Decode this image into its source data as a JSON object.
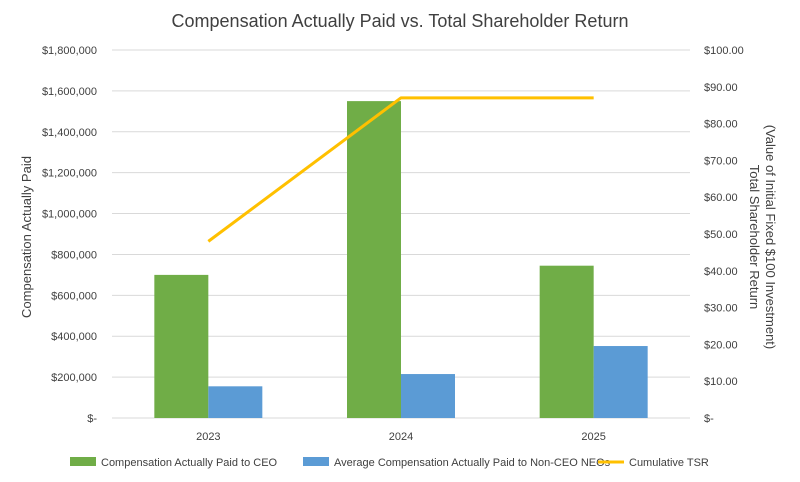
{
  "chart_data": {
    "type": "bar",
    "title": "Compensation Actually Paid vs. Total Shareholder Return",
    "categories": [
      "2023",
      "2024",
      "2025"
    ],
    "series": [
      {
        "name": "Compensation Actually Paid to CEO",
        "kind": "bar",
        "axis": "left",
        "color": "#70ad47",
        "values": [
          700000,
          1550000,
          745000
        ]
      },
      {
        "name": "Average Compensation Actually Paid to Non-CEO NEOs",
        "kind": "bar",
        "axis": "left",
        "color": "#5b9bd5",
        "values": [
          155000,
          215000,
          352000
        ]
      },
      {
        "name": "Cumulative TSR",
        "kind": "line",
        "axis": "right",
        "color": "#ffc000",
        "values": [
          48,
          87,
          87
        ]
      }
    ],
    "y_left": {
      "label": "Compensation Actually Paid",
      "range": [
        0,
        1800000
      ],
      "ticks": [
        0,
        200000,
        400000,
        600000,
        800000,
        1000000,
        1200000,
        1400000,
        1600000,
        1800000
      ],
      "tick_labels": [
        "$-",
        "$200,000",
        "$400,000",
        "$600,000",
        "$800,000",
        "$1,000,000",
        "$1,200,000",
        "$1,400,000",
        "$1,600,000",
        "$1,800,000"
      ]
    },
    "y_right": {
      "label_line1": "Total Shareholder Return",
      "label_line2": "(Value of Initial Fixed $100 Investment)",
      "range": [
        0,
        100
      ],
      "ticks": [
        0,
        10,
        20,
        30,
        40,
        50,
        60,
        70,
        80,
        90,
        100
      ],
      "tick_labels": [
        "$-",
        "$10.00",
        "$20.00",
        "$30.00",
        "$40.00",
        "$50.00",
        "$60.00",
        "$70.00",
        "$80.00",
        "$90.00",
        "$100.00"
      ]
    },
    "grid": true,
    "legend_position": "bottom"
  }
}
